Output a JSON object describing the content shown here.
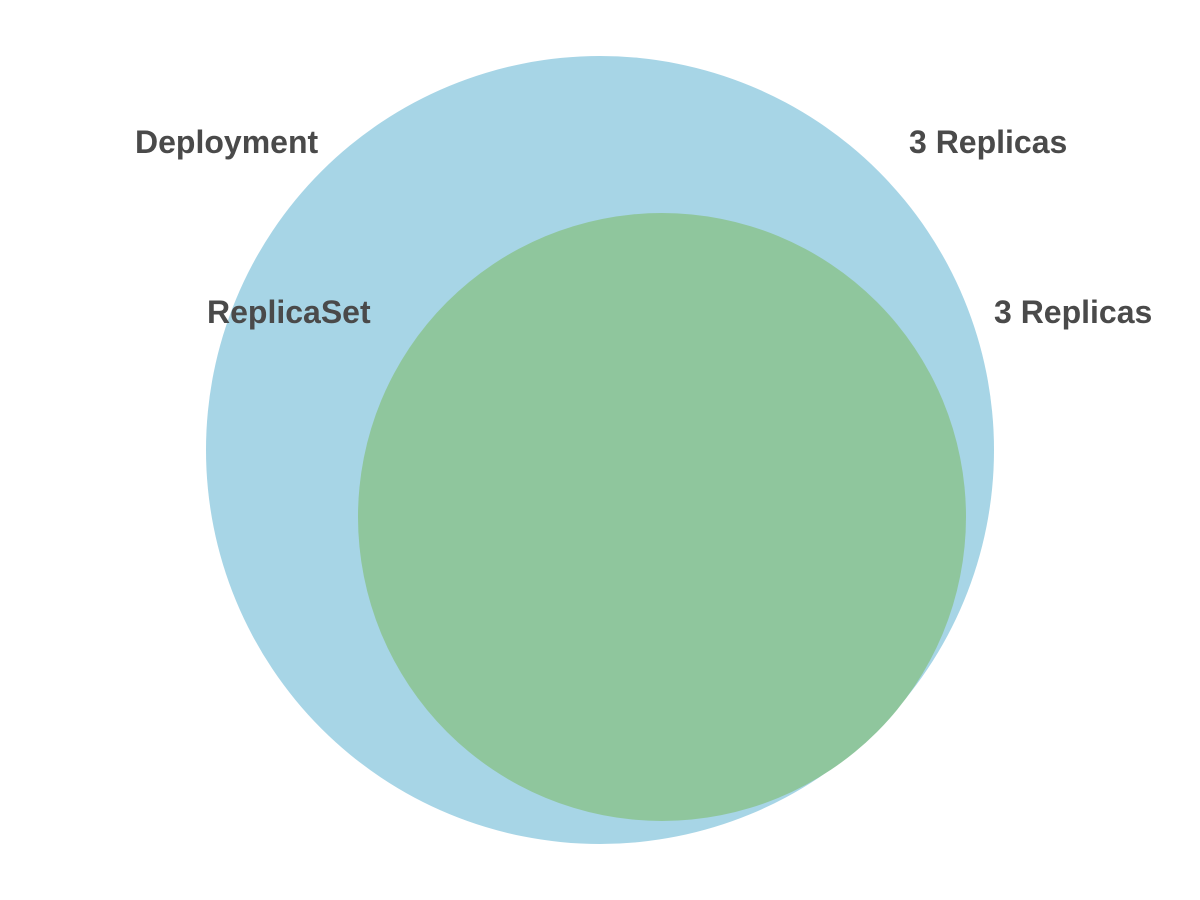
{
  "diagram": {
    "sets": [
      {
        "name": "Deployment",
        "count_label": "3 Replicas",
        "color": "#a7d5e6"
      },
      {
        "name": "ReplicaSet",
        "count_label": "3 Replicas",
        "color": "#8fc69d"
      }
    ],
    "label_color": "#4a4a4a",
    "relationship": "ReplicaSet contained within Deployment"
  }
}
